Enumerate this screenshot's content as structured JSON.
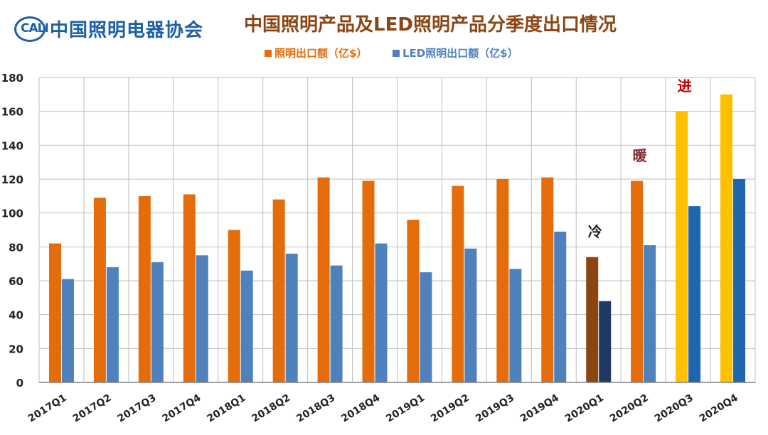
{
  "header": {
    "logo_mark": "CALI",
    "logo_name": "中国照明电器协会"
  },
  "colors": {
    "orange": "#E46C0A",
    "blue": "#4F81BD",
    "brown": "#8B4513",
    "navy": "#1F3864",
    "gold": "#FFC000",
    "deep_blue": "#1F66B0",
    "title": "#8B4513",
    "annot_cold": "#222222",
    "annot_warm": "#7B2C2C",
    "annot_up": "#C00000"
  },
  "chart_data": {
    "type": "bar",
    "title": "中国照明产品及LED照明产品分季度出口情况",
    "xlabel": "",
    "ylabel": "",
    "ylim": [
      0,
      180
    ],
    "yticks": [
      "0",
      "20",
      "40",
      "60",
      "80",
      "100",
      "120",
      "140",
      "160",
      "180"
    ],
    "grid": true,
    "legend_position": "top-center",
    "categories": [
      "2017Q1",
      "2017Q2",
      "2017Q3",
      "2017Q4",
      "2018Q1",
      "2018Q2",
      "2018Q3",
      "2018Q4",
      "2019Q1",
      "2019Q2",
      "2019Q3",
      "2019Q4",
      "2020Q1",
      "2020Q2",
      "2020Q3",
      "2020Q4"
    ],
    "series": [
      {
        "name": "照明出口额（亿$）",
        "values": [
          82,
          109,
          110,
          111,
          90,
          108,
          121,
          119,
          96,
          116,
          120,
          121,
          74,
          119,
          160,
          170
        ]
      },
      {
        "name": "LED照明出口额（亿$）",
        "values": [
          61,
          68,
          71,
          75,
          66,
          76,
          69,
          82,
          65,
          79,
          67,
          89,
          48,
          81,
          104,
          120
        ]
      }
    ],
    "highlights": {
      "2020Q1": [
        "brown",
        "navy"
      ],
      "2020Q3": [
        "gold",
        "deep_blue"
      ],
      "2020Q4": [
        "gold",
        "deep_blue"
      ]
    },
    "annotations": [
      {
        "text": "冷",
        "category": "2020Q1",
        "y": 86,
        "color": "annot_cold"
      },
      {
        "text": "暖",
        "category": "2020Q2",
        "y": 131,
        "color": "annot_warm"
      },
      {
        "text": "进",
        "category": "2020Q3",
        "y": 172,
        "color": "annot_up"
      }
    ]
  }
}
